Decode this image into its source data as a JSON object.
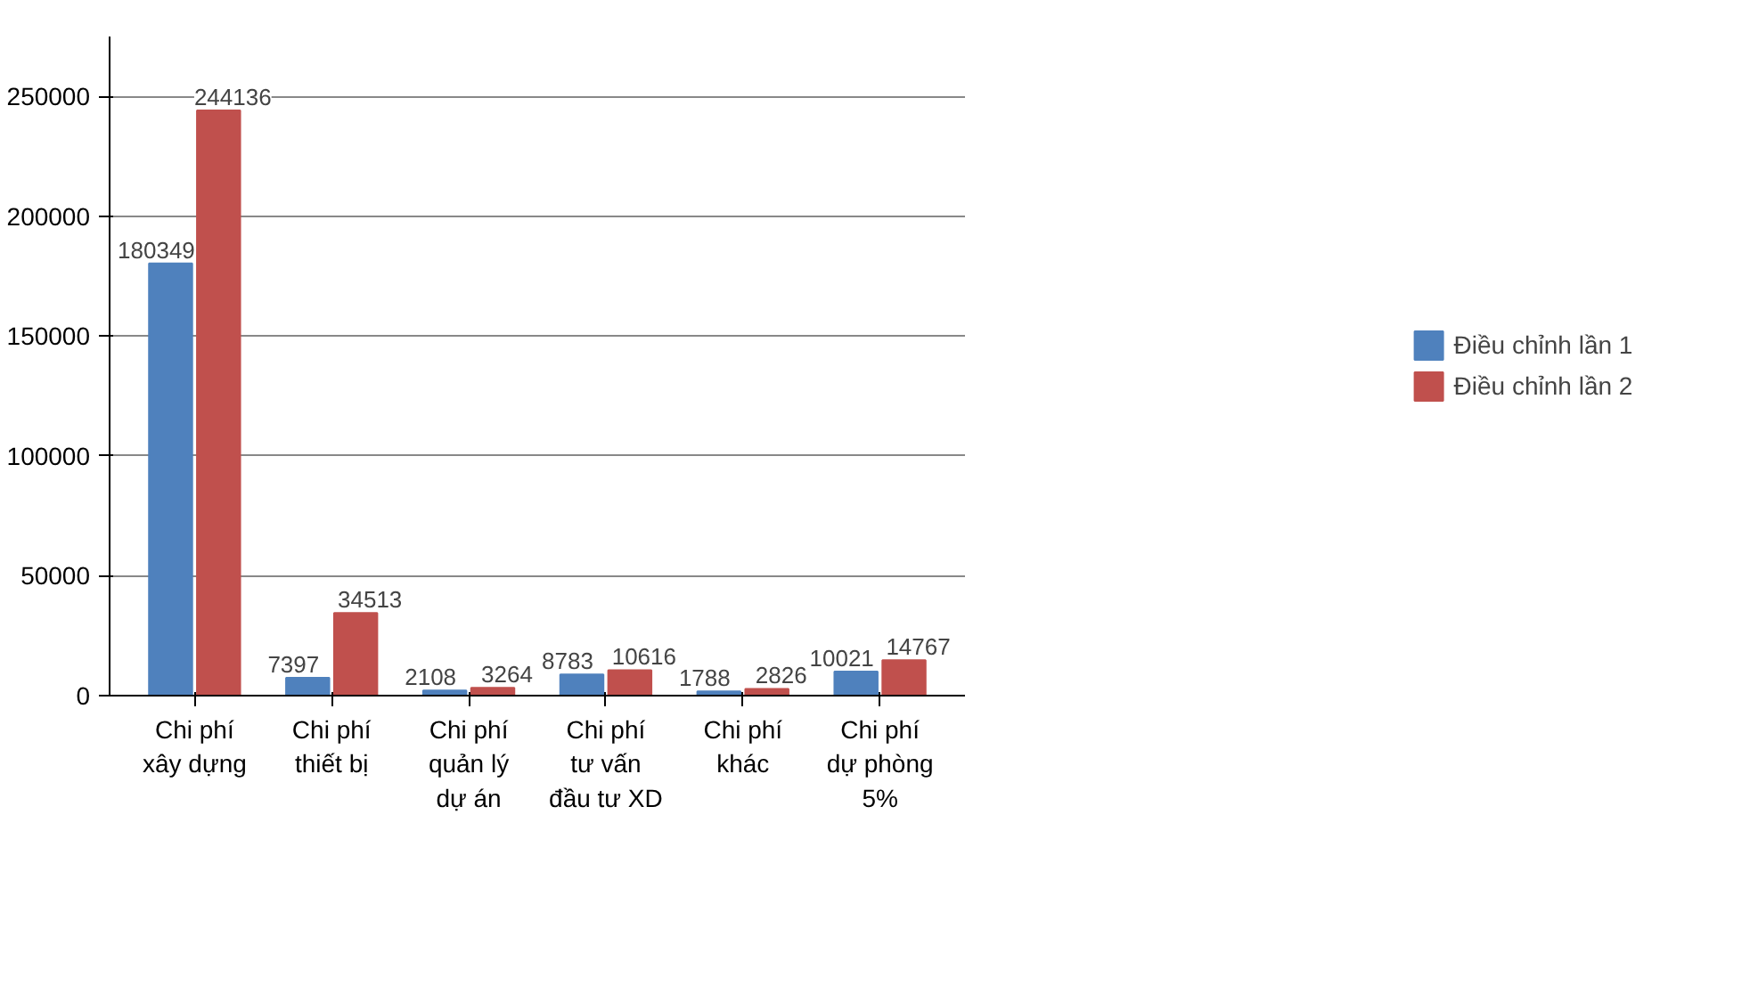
{
  "chart_data": {
    "type": "bar",
    "categories": [
      "Chi phí xây dựng",
      "Chi phí thiết bị",
      "Chi phí quản lý dự án",
      "Chi phí tư vấn đầu tư XD",
      "Chi phí khác",
      "Chi phí dự phòng 5%"
    ],
    "series": [
      {
        "name": "Điều chỉnh lần 1",
        "color": "#4f81bd",
        "values": [
          180349,
          7397,
          2108,
          8783,
          1788,
          10021
        ]
      },
      {
        "name": "Điều chỉnh lần 2",
        "color": "#c0504d",
        "values": [
          244136,
          34513,
          3264,
          10616,
          2826,
          14767
        ]
      }
    ],
    "ylim": [
      0,
      275000
    ],
    "yticks": [
      0,
      50000,
      100000,
      150000,
      200000,
      250000
    ],
    "grid": "y",
    "legend": "right",
    "data_labels": true
  }
}
